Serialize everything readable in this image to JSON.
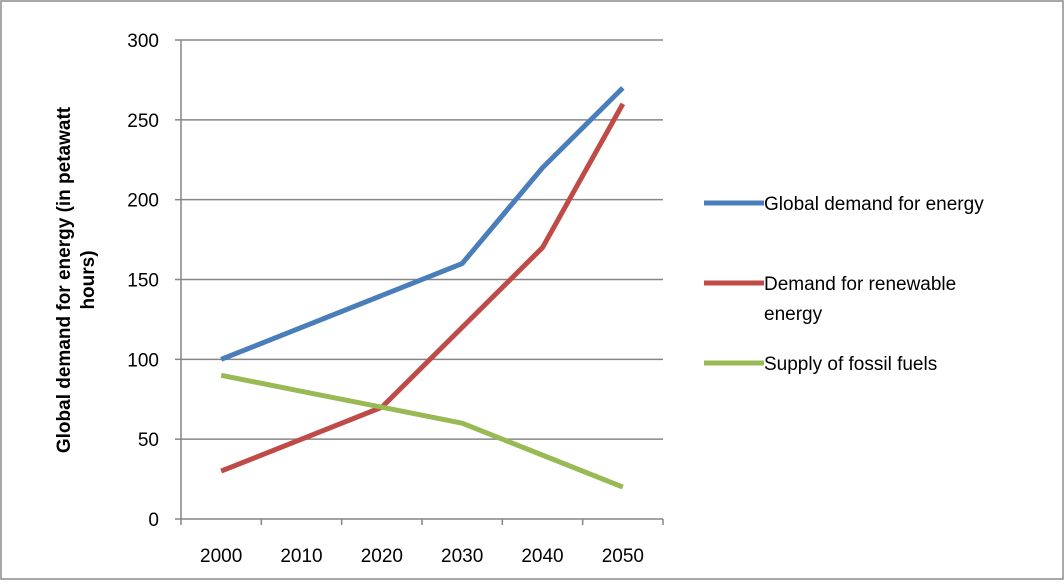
{
  "chart_data": {
    "type": "line",
    "title": "",
    "xlabel": "",
    "ylabel": "Global demand for energy (in petawatt hours)",
    "ylabel_lines": [
      "Global demand for energy (in petawatt",
      "hours)"
    ],
    "categories": [
      "2000",
      "2010",
      "2020",
      "2030",
      "2040",
      "2050"
    ],
    "ylim": [
      0,
      300
    ],
    "yticks": [
      "0",
      "50",
      "100",
      "150",
      "200",
      "250",
      "300"
    ],
    "grid": true,
    "legend_position": "right",
    "series": [
      {
        "name": "Global demand for energy",
        "name_lines": [
          "Global demand for energy"
        ],
        "color": "#4a7ebb",
        "x": [
          2005,
          2015,
          2025,
          2035,
          2045,
          2055
        ],
        "values": [
          100,
          120,
          140,
          160,
          220,
          270
        ]
      },
      {
        "name": "Demand for renewable energy",
        "name_lines": [
          "Demand for renewable",
          "energy"
        ],
        "color": "#be4b48",
        "x": [
          2005,
          2015,
          2025,
          2035,
          2045,
          2055
        ],
        "values": [
          30,
          50,
          70,
          120,
          170,
          260
        ]
      },
      {
        "name": "Supply of fossil fuels",
        "name_lines": [
          "Supply of fossil fuels"
        ],
        "color": "#98b954",
        "x": [
          2005,
          2015,
          2025,
          2035,
          2045,
          2055
        ],
        "values": [
          90,
          80,
          70,
          60,
          40,
          20
        ]
      }
    ]
  }
}
